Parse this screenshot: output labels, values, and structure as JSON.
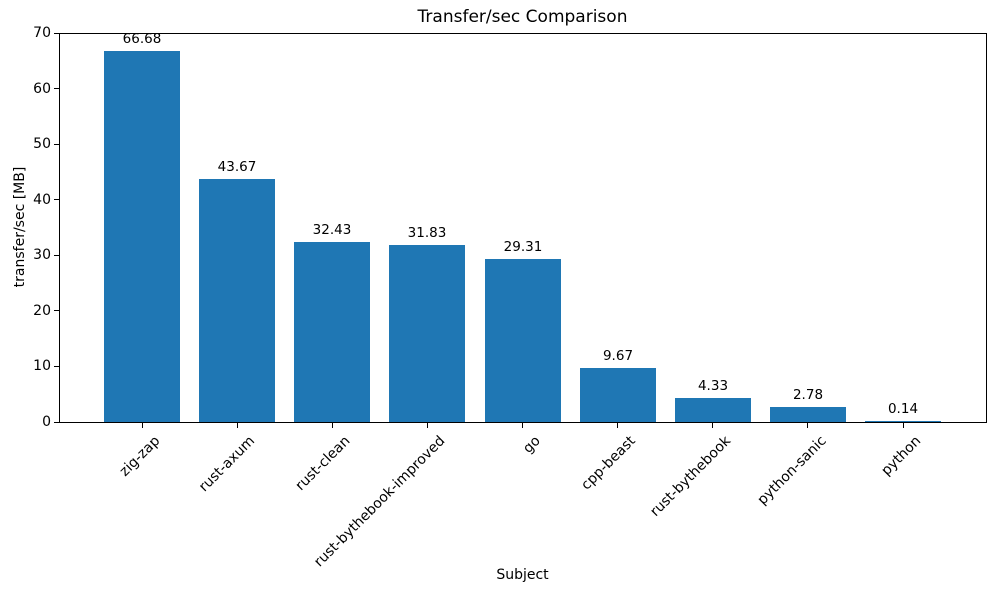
{
  "chart_data": {
    "type": "bar",
    "title": "Transfer/sec Comparison",
    "xlabel": "Subject",
    "ylabel": "transfer/sec [MB]",
    "categories": [
      "zig-zap",
      "rust-axum",
      "rust-clean",
      "rust-bythebook-improved",
      "go",
      "cpp-beast",
      "rust-bythebook",
      "python-sanic",
      "python"
    ],
    "values": [
      66.68,
      43.67,
      32.43,
      31.83,
      29.31,
      9.67,
      4.33,
      2.78,
      0.14
    ],
    "value_labels": [
      "66.68",
      "43.67",
      "32.43",
      "31.83",
      "29.31",
      "9.67",
      "4.33",
      "2.78",
      "0.14"
    ],
    "ylim": [
      0,
      70
    ],
    "yticks": [
      0,
      10,
      20,
      30,
      40,
      50,
      60,
      70
    ],
    "bar_color": "#1f77b4",
    "grid": false,
    "legend_position": "none"
  }
}
